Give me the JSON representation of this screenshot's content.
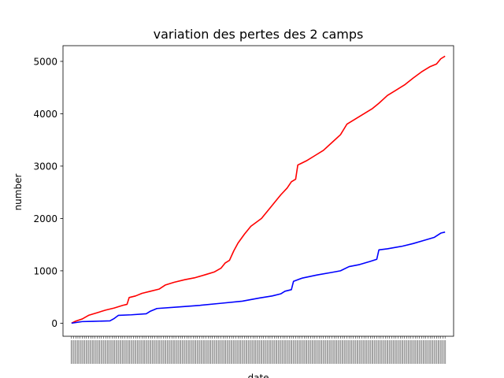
{
  "chart_data": {
    "type": "line",
    "title": "variation des pertes des 2 camps",
    "xlabel": "date",
    "ylabel": "number",
    "ylim": [
      -250,
      5300
    ],
    "yticks": [
      0,
      1000,
      2000,
      3000,
      4000,
      5000
    ],
    "grid": false,
    "legend": "none",
    "x_note": "dense daily date tick labels (unreadable at this resolution)",
    "series": [
      {
        "color": "#ff0000",
        "points": [
          [
            0,
            0
          ],
          [
            2,
            40
          ],
          [
            5,
            80
          ],
          [
            8,
            150
          ],
          [
            12,
            200
          ],
          [
            16,
            250
          ],
          [
            20,
            290
          ],
          [
            24,
            340
          ],
          [
            26,
            360
          ],
          [
            27,
            490
          ],
          [
            30,
            520
          ],
          [
            33,
            570
          ],
          [
            37,
            610
          ],
          [
            41,
            650
          ],
          [
            44,
            730
          ],
          [
            48,
            780
          ],
          [
            53,
            830
          ],
          [
            58,
            870
          ],
          [
            63,
            930
          ],
          [
            67,
            980
          ],
          [
            70,
            1050
          ],
          [
            72,
            1150
          ],
          [
            74,
            1200
          ],
          [
            76,
            1380
          ],
          [
            78,
            1530
          ],
          [
            81,
            1700
          ],
          [
            84,
            1850
          ],
          [
            89,
            2000
          ],
          [
            93,
            2200
          ],
          [
            96,
            2350
          ],
          [
            98,
            2450
          ],
          [
            101,
            2580
          ],
          [
            103,
            2700
          ],
          [
            105,
            2750
          ],
          [
            106,
            3020
          ],
          [
            110,
            3100
          ],
          [
            114,
            3200
          ],
          [
            118,
            3300
          ],
          [
            122,
            3450
          ],
          [
            126,
            3600
          ],
          [
            129,
            3800
          ],
          [
            133,
            3900
          ],
          [
            137,
            4000
          ],
          [
            141,
            4100
          ],
          [
            144,
            4200
          ],
          [
            148,
            4350
          ],
          [
            152,
            4450
          ],
          [
            156,
            4550
          ],
          [
            160,
            4680
          ],
          [
            164,
            4800
          ],
          [
            168,
            4900
          ],
          [
            171,
            4950
          ],
          [
            173,
            5050
          ],
          [
            175,
            5100
          ]
        ]
      },
      {
        "color": "#0000ff",
        "points": [
          [
            0,
            0
          ],
          [
            5,
            30
          ],
          [
            10,
            35
          ],
          [
            18,
            45
          ],
          [
            20,
            90
          ],
          [
            22,
            150
          ],
          [
            28,
            160
          ],
          [
            35,
            180
          ],
          [
            37,
            230
          ],
          [
            40,
            280
          ],
          [
            50,
            310
          ],
          [
            60,
            340
          ],
          [
            70,
            380
          ],
          [
            80,
            420
          ],
          [
            84,
            450
          ],
          [
            88,
            480
          ],
          [
            94,
            520
          ],
          [
            98,
            560
          ],
          [
            100,
            610
          ],
          [
            103,
            640
          ],
          [
            104,
            800
          ],
          [
            108,
            860
          ],
          [
            115,
            920
          ],
          [
            122,
            970
          ],
          [
            126,
            1000
          ],
          [
            130,
            1080
          ],
          [
            135,
            1120
          ],
          [
            140,
            1180
          ],
          [
            143,
            1220
          ],
          [
            144,
            1400
          ],
          [
            148,
            1420
          ],
          [
            155,
            1470
          ],
          [
            160,
            1520
          ],
          [
            165,
            1580
          ],
          [
            170,
            1640
          ],
          [
            173,
            1720
          ],
          [
            175,
            1740
          ]
        ]
      }
    ],
    "x_count": 176
  }
}
